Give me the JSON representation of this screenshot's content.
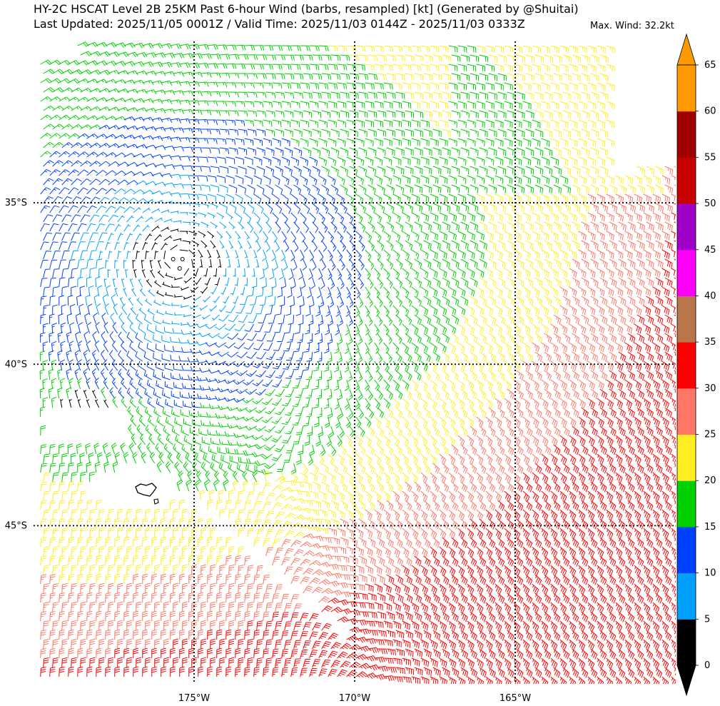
{
  "header": {
    "title_line1": "HY-2C HSCAT Level 2B 25KM Past 6-hour Wind (barbs, resampled) [kt] (Generated by @Shuitai)",
    "title_line2": "Last Updated: 2025/11/05 0001Z / Valid Time: 2025/11/03 0144Z - 2025/11/03 0333Z",
    "max_wind": "Max. Wind: 32.2kt"
  },
  "map": {
    "lat_labels": [
      "35°S",
      "40°S",
      "45°S"
    ],
    "lon_labels": [
      "175°W",
      "170°W",
      "165°W"
    ],
    "lat_values": [
      -35,
      -40,
      -45
    ],
    "lon_values": [
      -175,
      -170,
      -165
    ],
    "extent": {
      "lon_min": -180,
      "lon_max": -160,
      "lat_min": -49.9,
      "lat_max": -30
    },
    "gridlines": "dotted",
    "cyclone_center": {
      "lon": -175.5,
      "lat": -36.8
    }
  },
  "colorbar": {
    "ticks": [
      "0",
      "5",
      "10",
      "15",
      "20",
      "25",
      "30",
      "35",
      "40",
      "45",
      "50",
      "55",
      "60",
      "65"
    ],
    "bins": [
      {
        "min": 0,
        "max": 5,
        "color": "#000000"
      },
      {
        "min": 5,
        "max": 10,
        "color": "#00a0ff"
      },
      {
        "min": 10,
        "max": 15,
        "color": "#0040ff"
      },
      {
        "min": 15,
        "max": 20,
        "color": "#00d000"
      },
      {
        "min": 20,
        "max": 25,
        "color": "#ffee22"
      },
      {
        "min": 25,
        "max": 30,
        "color": "#ff7766"
      },
      {
        "min": 30,
        "max": 35,
        "color": "#ff0000"
      },
      {
        "min": 35,
        "max": 40,
        "color": "#b8764a"
      },
      {
        "min": 40,
        "max": 45,
        "color": "#ff00ff"
      },
      {
        "min": 45,
        "max": 50,
        "color": "#a000c8"
      },
      {
        "min": 50,
        "max": 55,
        "color": "#c80000"
      },
      {
        "min": 55,
        "max": 60,
        "color": "#a00000"
      },
      {
        "min": 60,
        "max": 65,
        "color": "#ff9900"
      }
    ],
    "extend": "both",
    "unit": "kt"
  }
}
